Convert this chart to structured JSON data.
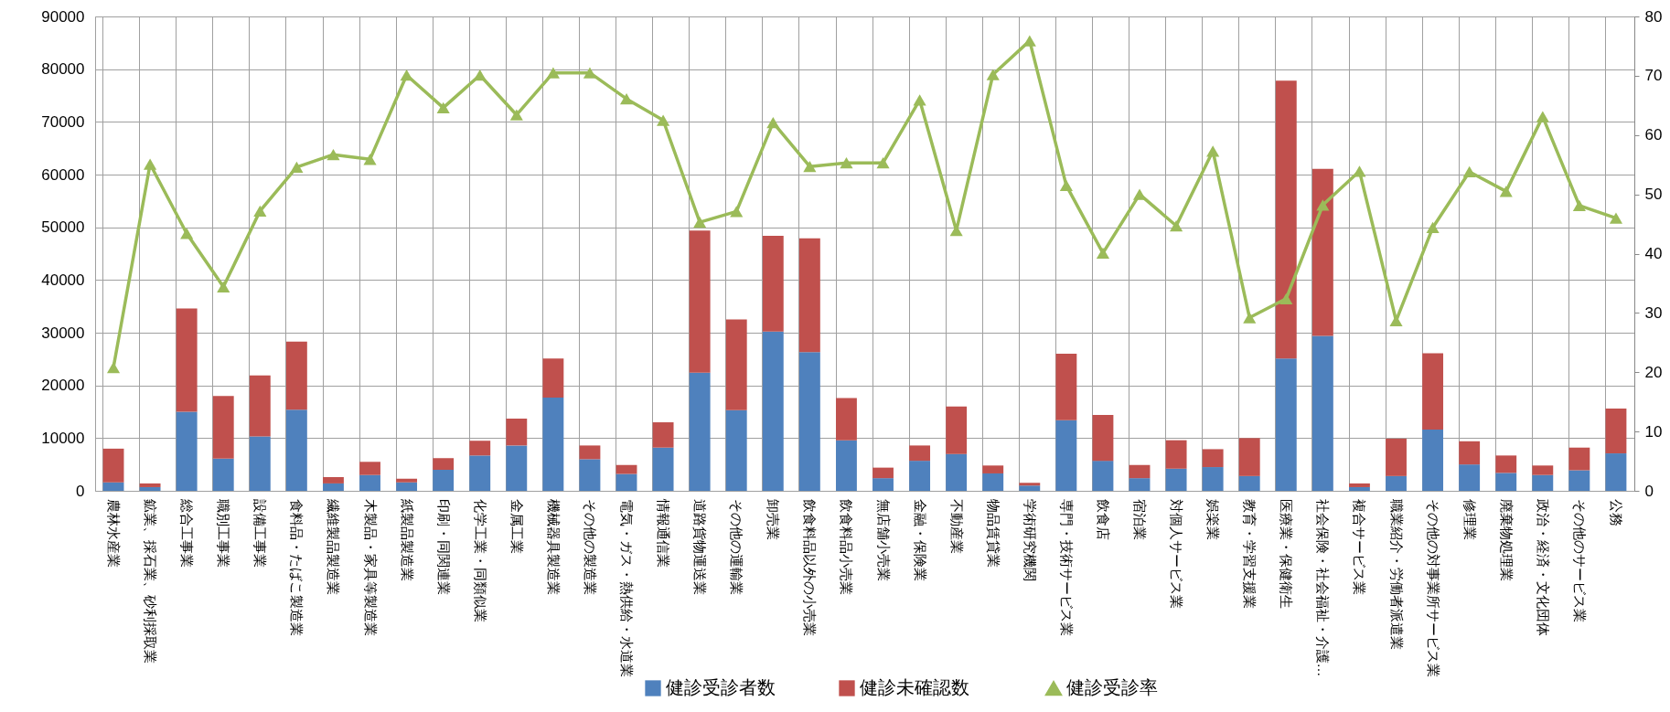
{
  "chart_data": {
    "type": "bar",
    "stacked": true,
    "categories": [
      "農林水産業",
      "鉱業、採石業、砂利採取業",
      "総合工事業",
      "職別工事業",
      "設備工事業",
      "食料品・たばこ製造業",
      "繊維製品製造業",
      "木製品・家具等製造業",
      "紙製品製造業",
      "印刷・同関連業",
      "化学工業・同類似業",
      "金属工業",
      "機械器具製造業",
      "その他の製造業",
      "電気・ガス・熱供給・水道業",
      "情報通信業",
      "道路貨物運送業",
      "その他の運輸業",
      "卸売業",
      "飲食料品以外の小売業",
      "飲食料品小売業",
      "無店舗小売業",
      "金融・保険業",
      "不動産業",
      "物品賃貸業",
      "学術研究機関",
      "専門・技術サービス業",
      "飲食店",
      "宿泊業",
      "対個人サービス業",
      "娯楽業",
      "教育・学習支援業",
      "医療業・保健衛生",
      "社会保険・社会福祉・介護…",
      "複合サービス業",
      "職業紹介・労働者派遣業",
      "その他の対事業所サービス業",
      "修理業",
      "廃棄物処理業",
      "政治・経済・文化団体",
      "その他のサービス業",
      "公務"
    ],
    "series": [
      {
        "name": "健診受診者数",
        "color": "#4f81bd",
        "values": [
          1600,
          700,
          15000,
          6100,
          10300,
          15400,
          1400,
          3000,
          1600,
          4000,
          6700,
          8600,
          17700,
          6000,
          3200,
          8200,
          22400,
          15300,
          30200,
          26300,
          9600,
          2400,
          5700,
          7000,
          3300,
          1000,
          13400,
          5700,
          2400,
          4200,
          4500,
          2800,
          25100,
          29400,
          700,
          2800,
          11600,
          5000,
          3400,
          3000,
          3900,
          7100
        ]
      },
      {
        "name": "健診未確認数",
        "color": "#c0504d",
        "values": [
          6400,
          700,
          19600,
          11900,
          11600,
          12900,
          1200,
          2500,
          700,
          2200,
          2800,
          5100,
          7400,
          2600,
          1700,
          4800,
          27000,
          17200,
          18200,
          21600,
          8000,
          2000,
          2900,
          9000,
          1500,
          500,
          12600,
          8700,
          2500,
          5400,
          3400,
          7200,
          52700,
          31700,
          700,
          7100,
          14500,
          4400,
          3300,
          1800,
          4300,
          8500
        ]
      },
      {
        "name": "健診受診率",
        "type": "line",
        "axis": "y2",
        "color": "#9bbb59",
        "marker": "triangle",
        "values": [
          20.8,
          55.1,
          43.4,
          34.4,
          47.2,
          54.6,
          56.7,
          55.9,
          70.1,
          64.6,
          70.1,
          63.4,
          70.5,
          70.5,
          66.1,
          62.5,
          45.3,
          47.1,
          62.1,
          54.7,
          55.3,
          55.3,
          65.9,
          43.9,
          70.2,
          75.9,
          51.5,
          40.1,
          50.0,
          44.7,
          57.3,
          29.2,
          32.4,
          48.2,
          53.9,
          28.7,
          44.4,
          53.8,
          50.5,
          63.1,
          48.1,
          46.0
        ]
      }
    ],
    "ylim": [
      0,
      90000
    ],
    "yticks": [
      0,
      10000,
      20000,
      30000,
      40000,
      50000,
      60000,
      70000,
      80000,
      90000
    ],
    "y2lim": [
      0,
      80
    ],
    "y2ticks": [
      0,
      10,
      20,
      30,
      40,
      50,
      60,
      70,
      80
    ],
    "grid": true,
    "legend": "bottom"
  }
}
